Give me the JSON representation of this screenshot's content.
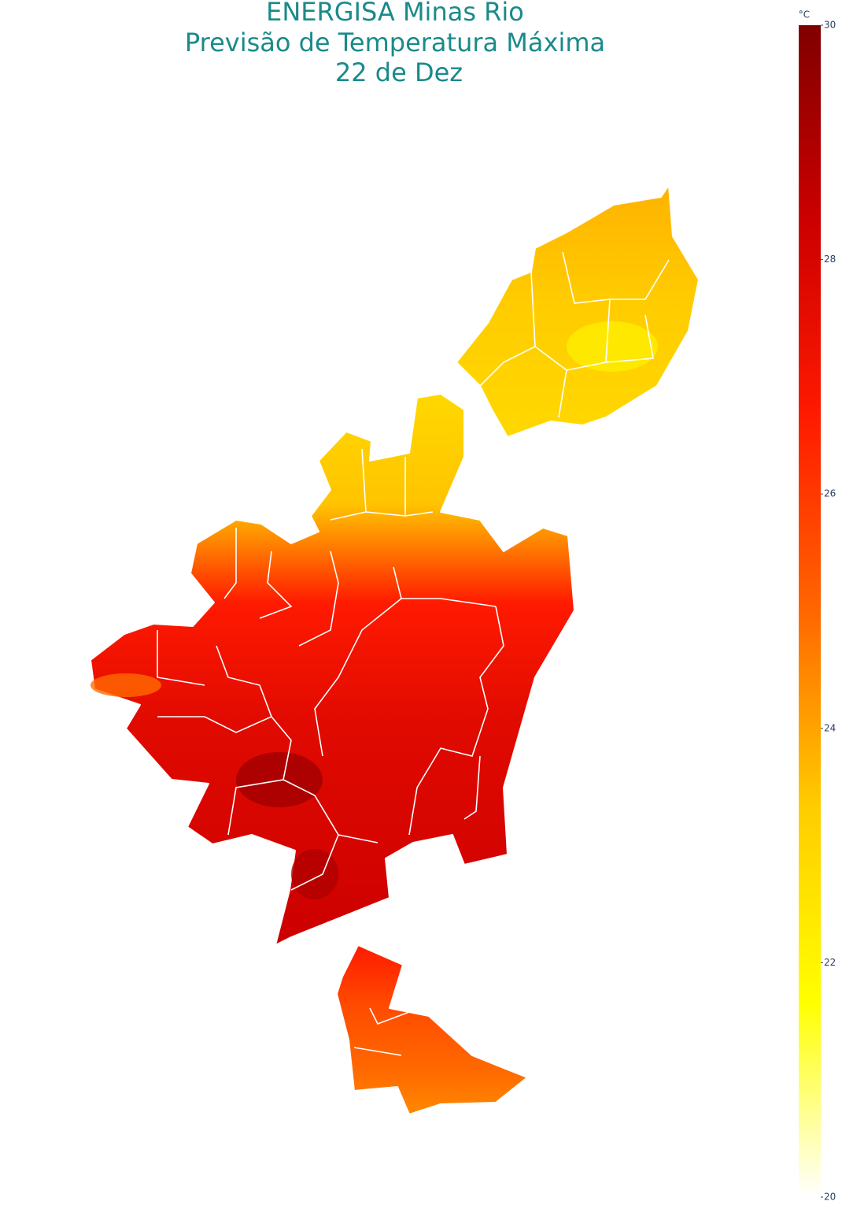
{
  "title": "ENERGISA Minas Rio",
  "subtitle": "Previsão de Temperatura Máxima",
  "date": "22 de Dez",
  "colorbar": {
    "title": "°C",
    "range": [
      20,
      30
    ],
    "ticks": [
      20,
      22,
      24,
      26,
      28,
      30
    ],
    "colors": [
      "#ffffff",
      "#ffff00",
      "#ffcc00",
      "#ff6600",
      "#ff1a00",
      "#cc0000",
      "#800000"
    ]
  }
}
